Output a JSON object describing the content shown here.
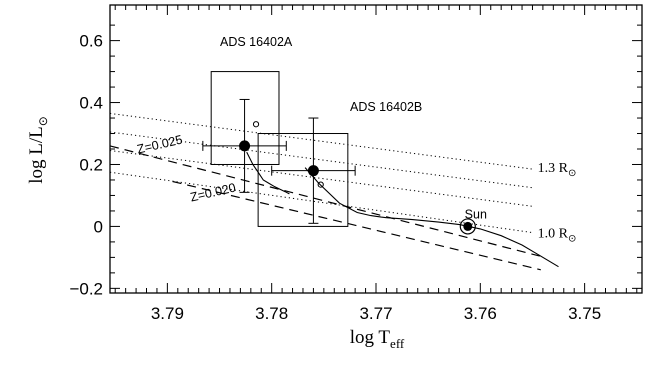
{
  "chart_data": {
    "type": "scatter",
    "title": "",
    "xlabel": "log T_eff",
    "xlabel_main": "log T",
    "xlabel_sub": "eff",
    "ylabel": "log L/L⊙",
    "ylabel_main": "log L/L",
    "ylabel_sub": "⊙",
    "xlim": [
      3.7955,
      3.7445
    ],
    "ylim": [
      -0.215,
      0.715
    ],
    "x_ticks": [
      3.79,
      3.78,
      3.77,
      3.76,
      3.75
    ],
    "x_tick_labels": [
      "3.79",
      "3.78",
      "3.77",
      "3.76",
      "3.75"
    ],
    "y_ticks": [
      -0.2,
      0,
      0.2,
      0.4,
      0.6
    ],
    "y_tick_labels": [
      "−0.2",
      "0",
      "0.2",
      "0.4",
      "0.6"
    ],
    "grid": false,
    "stars": [
      {
        "label": "ADS 16402A",
        "x": 3.7826,
        "y": 0.26,
        "xerr": 0.004,
        "yerr": 0.15
      },
      {
        "label": "ADS 16402B",
        "x": 3.776,
        "y": 0.18,
        "xerr": 0.004,
        "yerr": 0.17
      }
    ],
    "boxes": [
      {
        "x0": 3.7858,
        "x1": 3.7793,
        "y0": 0.2,
        "y1": 0.5
      },
      {
        "x0": 3.7813,
        "x1": 3.7727,
        "y0": 0.0,
        "y1": 0.3
      }
    ],
    "open_circles": [
      {
        "x": 3.7815,
        "y": 0.33
      },
      {
        "x": 3.7753,
        "y": 0.135
      }
    ],
    "sun": {
      "label": "Sun",
      "x": 3.7612,
      "y": 0.0
    },
    "radius_lines": [
      {
        "x": [
          3.7955,
          3.755
        ],
        "y": [
          0.365,
          0.185
        ]
      },
      {
        "x": [
          3.7955,
          3.755
        ],
        "y": [
          0.305,
          0.125
        ]
      },
      {
        "x": [
          3.7955,
          3.755
        ],
        "y": [
          0.245,
          0.065
        ]
      },
      {
        "x": [
          3.7955,
          3.755
        ],
        "y": [
          0.175,
          -0.02
        ]
      }
    ],
    "radius_labels": [
      {
        "text": "1.3 R",
        "sub": "⊙",
        "x": 3.7545,
        "y": 0.175
      },
      {
        "text": "1.0 R",
        "sub": "⊙",
        "x": 3.7545,
        "y": -0.035
      }
    ],
    "isochrones": [
      {
        "label": "Z=0.025",
        "x": [
          3.7955,
          3.7543
        ],
        "y": [
          0.26,
          -0.096
        ]
      },
      {
        "label": "Z=0.020",
        "x": [
          3.7895,
          3.7542
        ],
        "y": [
          0.145,
          -0.14
        ]
      }
    ],
    "isochrone_labels": [
      {
        "text": "Z=0.025",
        "x": 3.7928,
        "y": 0.235
      },
      {
        "text": "Z=0.020",
        "x": 3.7877,
        "y": 0.08
      }
    ],
    "tracks": [
      {
        "x": [
          3.7824,
          3.7818,
          3.7812,
          3.7808,
          3.7803,
          3.7798,
          3.7792,
          3.7787,
          3.7783
        ],
        "y": [
          0.24,
          0.2,
          0.17,
          0.15,
          0.14,
          0.13,
          0.12,
          0.112,
          0.105
        ]
      },
      {
        "x": [
          3.7768,
          3.7755,
          3.7735,
          3.7718,
          3.7705,
          3.7695,
          3.769
        ],
        "y": [
          0.19,
          0.14,
          0.075,
          0.045,
          0.035,
          0.03,
          0.028
        ]
      },
      {
        "x": [
          3.769,
          3.7665,
          3.764,
          3.762,
          3.76,
          3.758,
          3.756,
          3.7545,
          3.7525
        ],
        "y": [
          0.028,
          0.022,
          0.014,
          0.006,
          -0.008,
          -0.03,
          -0.06,
          -0.09,
          -0.13
        ]
      }
    ]
  }
}
